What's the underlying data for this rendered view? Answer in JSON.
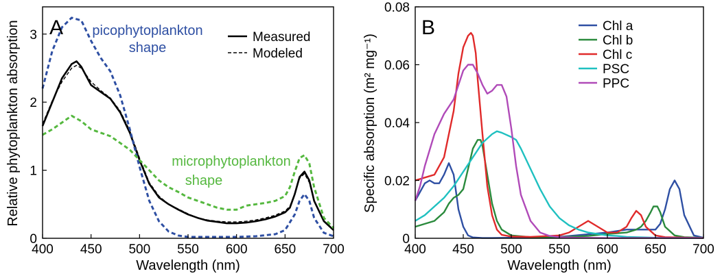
{
  "chart_data": [
    {
      "type": "line",
      "panel_label": "A",
      "xlabel": "Wavelength (nm)",
      "ylabel": "Relative phytoplankton absorption",
      "xlim": [
        400,
        700
      ],
      "ylim": [
        0,
        3.4
      ],
      "xticks": [
        400,
        450,
        500,
        550,
        600,
        650,
        700
      ],
      "yticks": [
        0,
        1,
        2,
        3
      ],
      "grid": false,
      "legend": {
        "placement": "top-right",
        "entries": [
          {
            "label": "Measured",
            "series": "Measured"
          },
          {
            "label": "Modeled",
            "series": "Modeled"
          }
        ]
      },
      "annotations": [
        {
          "lines": [
            "picophytoplankton",
            "shape"
          ],
          "color": "#2e4fa3"
        },
        {
          "lines": [
            "microphytoplankton",
            "shape"
          ],
          "color": "#55b83f"
        }
      ],
      "series": [
        {
          "name": "Measured",
          "color": "#000000",
          "dash": "solid",
          "x": [
            400,
            410,
            420,
            430,
            435,
            440,
            450,
            460,
            470,
            480,
            490,
            500,
            510,
            520,
            530,
            540,
            550,
            560,
            570,
            580,
            590,
            600,
            610,
            620,
            630,
            640,
            650,
            655,
            660,
            665,
            670,
            675,
            680,
            690,
            700
          ],
          "y": [
            1.65,
            2.0,
            2.35,
            2.56,
            2.6,
            2.52,
            2.25,
            2.15,
            2.05,
            1.85,
            1.55,
            1.15,
            0.8,
            0.6,
            0.5,
            0.42,
            0.35,
            0.3,
            0.26,
            0.24,
            0.22,
            0.22,
            0.23,
            0.25,
            0.28,
            0.32,
            0.38,
            0.45,
            0.65,
            0.9,
            0.98,
            0.85,
            0.55,
            0.25,
            0.12
          ]
        },
        {
          "name": "Modeled",
          "color": "#000000",
          "dash": "dashed",
          "x": [
            400,
            410,
            420,
            430,
            435,
            440,
            450,
            460,
            470,
            480,
            490,
            500,
            510,
            520,
            530,
            540,
            550,
            560,
            570,
            580,
            590,
            600,
            610,
            620,
            630,
            640,
            650,
            655,
            660,
            665,
            670,
            675,
            680,
            690,
            700
          ],
          "y": [
            1.68,
            2.02,
            2.3,
            2.5,
            2.54,
            2.5,
            2.3,
            2.17,
            2.06,
            1.87,
            1.58,
            1.18,
            0.82,
            0.62,
            0.5,
            0.43,
            0.36,
            0.3,
            0.27,
            0.25,
            0.24,
            0.24,
            0.25,
            0.27,
            0.3,
            0.34,
            0.4,
            0.47,
            0.66,
            0.88,
            0.95,
            0.82,
            0.55,
            0.26,
            0.13
          ]
        },
        {
          "name": "picophytoplankton",
          "color": "#2e4fa3",
          "dash": "dashed",
          "x": [
            400,
            410,
            420,
            430,
            440,
            450,
            460,
            470,
            480,
            490,
            500,
            510,
            520,
            530,
            540,
            550,
            560,
            570,
            580,
            590,
            600,
            620,
            640,
            650,
            660,
            665,
            670,
            675,
            680,
            690,
            700
          ],
          "y": [
            2.2,
            2.75,
            3.1,
            3.24,
            3.2,
            2.9,
            2.65,
            2.45,
            2.1,
            1.6,
            1.05,
            0.55,
            0.25,
            0.1,
            0.04,
            0.02,
            0.02,
            0.02,
            0.02,
            0.02,
            0.02,
            0.03,
            0.06,
            0.12,
            0.35,
            0.55,
            0.65,
            0.55,
            0.3,
            0.08,
            0.03
          ]
        },
        {
          "name": "microphytoplankton",
          "color": "#55b83f",
          "dash": "dashed",
          "x": [
            400,
            410,
            420,
            430,
            440,
            450,
            460,
            470,
            480,
            490,
            500,
            510,
            520,
            530,
            540,
            550,
            560,
            570,
            580,
            590,
            600,
            610,
            620,
            630,
            640,
            650,
            655,
            660,
            665,
            670,
            675,
            680,
            690,
            700
          ],
          "y": [
            1.52,
            1.6,
            1.7,
            1.8,
            1.72,
            1.6,
            1.55,
            1.5,
            1.4,
            1.3,
            1.15,
            1.0,
            0.85,
            0.75,
            0.68,
            0.6,
            0.55,
            0.5,
            0.45,
            0.42,
            0.42,
            0.48,
            0.5,
            0.52,
            0.55,
            0.62,
            0.75,
            0.98,
            1.18,
            1.22,
            1.1,
            0.75,
            0.3,
            0.15
          ]
        }
      ]
    },
    {
      "type": "line",
      "panel_label": "B",
      "xlabel": "Wavelength (nm)",
      "ylabel": "Specific absorption (m² mg⁻¹)",
      "xlim": [
        400,
        700
      ],
      "ylim": [
        0,
        0.08
      ],
      "xticks": [
        400,
        450,
        500,
        550,
        600,
        650,
        700
      ],
      "yticks": [
        0,
        0.02,
        0.04,
        0.06,
        0.08
      ],
      "grid": false,
      "legend": {
        "placement": "top-right",
        "entries": [
          {
            "label": "Chl a",
            "series": "Chl a"
          },
          {
            "label": "Chl b",
            "series": "Chl b"
          },
          {
            "label": "Chl c",
            "series": "Chl c"
          },
          {
            "label": "PSC",
            "series": "PSC"
          },
          {
            "label": "PPC",
            "series": "PPC"
          }
        ]
      },
      "series": [
        {
          "name": "Chl a",
          "color": "#2e4fa3",
          "x": [
            400,
            405,
            410,
            415,
            420,
            425,
            430,
            435,
            440,
            445,
            450,
            455,
            460,
            470,
            480,
            500,
            550,
            600,
            620,
            640,
            650,
            655,
            660,
            665,
            670,
            675,
            680,
            690,
            700
          ],
          "y": [
            0.013,
            0.016,
            0.019,
            0.02,
            0.019,
            0.019,
            0.022,
            0.026,
            0.022,
            0.01,
            0.004,
            0.001,
            0.0003,
            0.0001,
            0.0001,
            0.0002,
            0.0005,
            0.002,
            0.003,
            0.003,
            0.003,
            0.005,
            0.01,
            0.017,
            0.02,
            0.017,
            0.008,
            0.001,
            0.0002
          ]
        },
        {
          "name": "Chl b",
          "color": "#2a8a3c",
          "x": [
            400,
            410,
            420,
            430,
            435,
            440,
            445,
            450,
            455,
            460,
            465,
            468,
            470,
            475,
            480,
            485,
            490,
            500,
            520,
            550,
            580,
            600,
            620,
            630,
            635,
            640,
            645,
            648,
            652,
            655,
            660,
            670,
            680,
            700
          ],
          "y": [
            0.004,
            0.005,
            0.006,
            0.009,
            0.012,
            0.014,
            0.015,
            0.017,
            0.024,
            0.031,
            0.034,
            0.034,
            0.032,
            0.022,
            0.012,
            0.006,
            0.003,
            0.001,
            0.0004,
            0.0004,
            0.0008,
            0.0015,
            0.002,
            0.003,
            0.004,
            0.006,
            0.009,
            0.011,
            0.011,
            0.009,
            0.004,
            0.001,
            0.0004,
            0.0002
          ]
        },
        {
          "name": "Chl c",
          "color": "#e02a2a",
          "x": [
            400,
            410,
            420,
            430,
            440,
            445,
            450,
            455,
            458,
            460,
            463,
            465,
            470,
            475,
            480,
            485,
            490,
            500,
            520,
            550,
            560,
            570,
            575,
            580,
            585,
            590,
            600,
            610,
            620,
            625,
            630,
            635,
            640,
            650,
            660,
            700
          ],
          "y": [
            0.02,
            0.021,
            0.022,
            0.028,
            0.044,
            0.057,
            0.066,
            0.07,
            0.071,
            0.07,
            0.064,
            0.055,
            0.036,
            0.018,
            0.008,
            0.003,
            0.0012,
            0.0006,
            0.0005,
            0.001,
            0.002,
            0.004,
            0.005,
            0.006,
            0.005,
            0.004,
            0.002,
            0.002,
            0.004,
            0.007,
            0.0095,
            0.008,
            0.004,
            0.001,
            0.0004,
            0.0001
          ]
        },
        {
          "name": "PSC",
          "color": "#1fc0c0",
          "x": [
            400,
            410,
            420,
            430,
            440,
            450,
            460,
            470,
            480,
            485,
            490,
            500,
            505,
            510,
            520,
            530,
            540,
            550,
            560,
            570,
            580,
            590,
            600,
            610,
            620,
            640,
            660,
            700
          ],
          "y": [
            0.006,
            0.008,
            0.011,
            0.014,
            0.018,
            0.023,
            0.028,
            0.033,
            0.036,
            0.037,
            0.0365,
            0.035,
            0.034,
            0.031,
            0.024,
            0.017,
            0.011,
            0.007,
            0.0045,
            0.003,
            0.002,
            0.0015,
            0.001,
            0.0008,
            0.0005,
            0.0003,
            0.0001,
            0.0001
          ]
        },
        {
          "name": "PPC",
          "color": "#b04ab8",
          "x": [
            400,
            405,
            410,
            420,
            430,
            440,
            450,
            455,
            460,
            465,
            470,
            475,
            480,
            485,
            490,
            495,
            500,
            505,
            510,
            520,
            530,
            540,
            550,
            570,
            600,
            700
          ],
          "y": [
            0.013,
            0.018,
            0.025,
            0.036,
            0.043,
            0.048,
            0.058,
            0.06,
            0.06,
            0.057,
            0.053,
            0.05,
            0.051,
            0.053,
            0.053,
            0.049,
            0.038,
            0.025,
            0.015,
            0.006,
            0.002,
            0.0008,
            0.0004,
            0.0002,
            0.0001,
            0.0001
          ]
        }
      ]
    }
  ]
}
